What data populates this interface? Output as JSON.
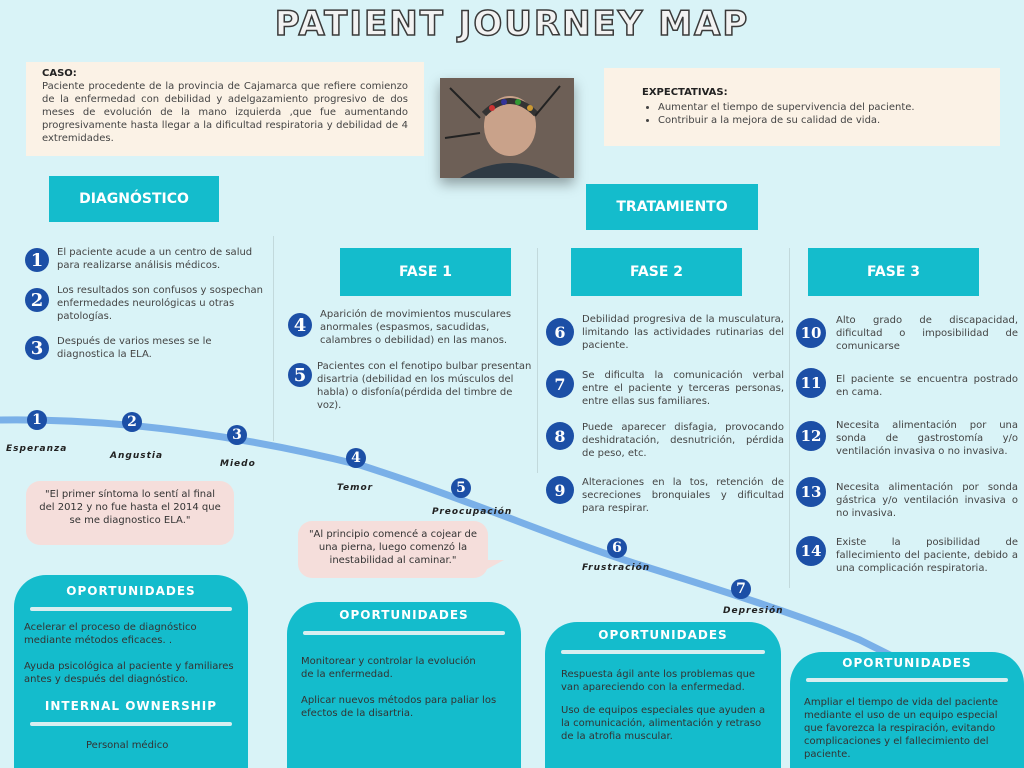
{
  "title": "PATIENT JOURNEY MAP",
  "case": {
    "label": "CASO:",
    "text": "Paciente procedente de la provincia de Cajamarca que refiere comienzo de la enfermedad con debilidad y adelgazamiento progresivo de dos meses de evolución de la mano izquierda ,que fue aumentando progresivamente hasta llegar a la dificultad respiratoria y debilidad de 4 extremidades."
  },
  "expectations": {
    "label": "EXPECTATIVAS:",
    "items": [
      "Aumentar el tiempo de supervivencia del paciente.",
      "Contribuir a la mejora de su calidad de vida."
    ]
  },
  "sections": {
    "diagnosis": "DIAGNÓSTICO",
    "treatment": "TRATAMIENTO",
    "phase1": "FASE 1",
    "phase2": "FASE 2",
    "phase3": "FASE 3"
  },
  "steps": {
    "s1": {
      "n": "1",
      "text": "El paciente acude a un centro de salud para realizarse análisis médicos."
    },
    "s2": {
      "n": "2",
      "text": "Los resultados son confusos y sospechan enfermedades neurológicas u otras patologías."
    },
    "s3": {
      "n": "3",
      "text": "Después de varios meses se le diagnostica la ELA."
    },
    "s4": {
      "n": "4",
      "text": "Aparición de movimientos musculares anormales (espasmos, sacudidas, calambres o debilidad) en las manos."
    },
    "s5": {
      "n": "5",
      "text": "Pacientes con el fenotipo bulbar presentan disartria (debilidad en los músculos del habla) o disfonía(pérdida del timbre de voz)."
    },
    "s6": {
      "n": "6",
      "text": "Debilidad progresiva de la musculatura, limitando las actividades rutinarias del paciente."
    },
    "s7": {
      "n": "7",
      "text": "Se dificulta la comunicación verbal entre el paciente y terceras personas, entre ellas sus familiares."
    },
    "s8": {
      "n": "8",
      "text": "Puede aparecer disfagia, provocando deshidratación, desnutrición, pérdida de peso, etc."
    },
    "s9": {
      "n": "9",
      "text": "Alteraciones en la tos, retención de secreciones bronquiales y dificultad para respirar."
    },
    "s10": {
      "n": "10",
      "text": "Alto grado de discapacidad, dificultad o imposibilidad de comunicarse"
    },
    "s11": {
      "n": "11",
      "text": "El paciente se encuentra postrado en cama."
    },
    "s12": {
      "n": "12",
      "text": "Necesita alimentación por una sonda de gastrostomía y/o ventilación invasiva o no invasiva."
    },
    "s13": {
      "n": "13",
      "text": "Necesita alimentación por sonda gástrica y/o ventilación invasiva o no invasiva."
    },
    "s14": {
      "n": "14",
      "text": "Existe la posibilidad de fallecimiento del paciente, debido a una complicación respiratoria."
    }
  },
  "emotions": [
    {
      "n": "1",
      "label": "Esperanza"
    },
    {
      "n": "2",
      "label": "Angustia"
    },
    {
      "n": "3",
      "label": "Miedo"
    },
    {
      "n": "4",
      "label": "Temor"
    },
    {
      "n": "5",
      "label": "Preocupación"
    },
    {
      "n": "6",
      "label": "Frustración"
    },
    {
      "n": "7",
      "label": "Depresión"
    }
  ],
  "quotes": {
    "q1": "\"El primer síntoma lo sentí al final del 2012 y no fue hasta el 2014 que se me diagnostico ELA.\"",
    "q2": "\"Al principio comencé a cojear de una pierna, luego comenzó la inestabilidad al caminar.\""
  },
  "opportunities": {
    "o1": {
      "title": "OPORTUNIDADES",
      "p1": "Acelerar el proceso de diagnóstico mediante métodos eficaces. .",
      "p2": "Ayuda psicológica al paciente y familiares antes y después del diagnóstico.",
      "ownership_title": "INTERNAL OWNERSHIP",
      "ownership": "Personal médico"
    },
    "o2": {
      "title": "OPORTUNIDADES",
      "p1": "Monitorear y controlar la evolución de la enfermedad.",
      "p2": "Aplicar nuevos métodos para paliar los efectos de la disartria."
    },
    "o3": {
      "title": "OPORTUNIDADES",
      "p1": "Respuesta ágil ante los problemas que van apareciendo con la enfermedad.",
      "p2": "Uso de equipos especiales que ayuden a la comunicación, alimentación y retraso de la atrofia muscular."
    },
    "o4": {
      "title": "OPORTUNIDADES",
      "p1": "Ampliar el tiempo de vida del paciente mediante el uso de un equipo especial que favorezca la respiración, evitando complicaciones y el fallecimiento del paciente."
    }
  }
}
